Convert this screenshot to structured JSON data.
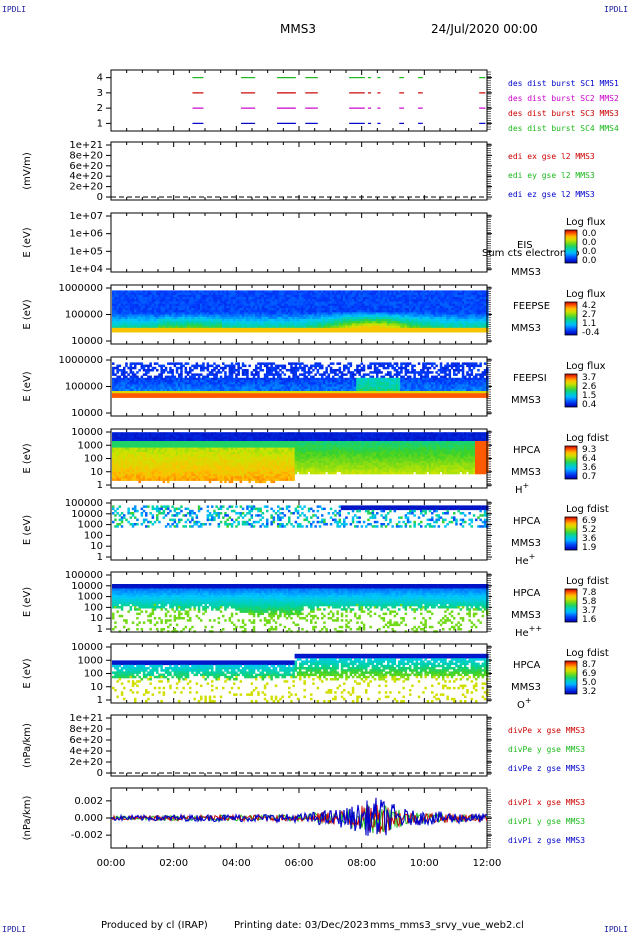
{
  "header": {
    "corner_left": "IPDLI",
    "corner_right": "IPDLI",
    "spacecraft": "MMS3",
    "date": "24/Jul/2020 00:00"
  },
  "footer": {
    "produced_by": "Produced by cl (IRAP)",
    "printing_date": "Printing date: 03/Dec/2023",
    "script": "mms_mms3_srvy_vue_web2.cl",
    "corner_left": "IPDLI",
    "corner_right": "IPDLI"
  },
  "colors": {
    "green": "#1bb81b",
    "red": "#cc0000",
    "magenta": "#cc00cc",
    "blue": "#0000cc",
    "black": "#000000"
  },
  "chart_data": [
    {
      "id": "burst",
      "type": "scatter",
      "ylabel": "",
      "ylim": [
        0.5,
        4.5
      ],
      "yticks": [
        "1",
        "2",
        "3",
        "4"
      ],
      "legend": [
        {
          "label": "des dist burst SC1 MMS1",
          "color": "#0000cc"
        },
        {
          "label": "des dist burst SC2 MMS2",
          "color": "#cc00cc"
        },
        {
          "label": "des dist burst SC3 MMS3",
          "color": "#cc0000"
        },
        {
          "label": "des dist burst SC4 MMS4",
          "color": "#1bb81b"
        }
      ],
      "segments_hours": [
        [
          2.6,
          2.95
        ],
        [
          4.15,
          4.6
        ],
        [
          5.3,
          5.9
        ],
        [
          6.2,
          6.6
        ],
        [
          7.6,
          8.1
        ],
        [
          8.2,
          8.3
        ],
        [
          8.5,
          8.6
        ],
        [
          9.2,
          9.35
        ],
        [
          9.8,
          9.95
        ],
        [
          11.75,
          11.95
        ]
      ],
      "series": [
        {
          "y": 1
        },
        {
          "y": 2
        },
        {
          "y": 3
        },
        {
          "y": 4
        }
      ]
    },
    {
      "id": "edi",
      "type": "line",
      "ylabel": "(mV/m)",
      "ylim": [
        0,
        1e+21
      ],
      "yticks": [
        "0",
        "2e+20",
        "4e+20",
        "6e+20",
        "8e+20",
        "1e+21"
      ],
      "legend": [
        {
          "label": "edi ex gse l2 MMS3",
          "color": "#cc0000"
        },
        {
          "label": "edi ey gse l2 MMS3",
          "color": "#1bb81b"
        },
        {
          "label": "edi ez gse l2 MMS3",
          "color": "#0000cc"
        }
      ],
      "zero_line": true
    },
    {
      "id": "eis",
      "type": "heatmap",
      "ylabel": "E (eV)",
      "yticks": [
        "1e+04",
        "1e+05",
        "1e+06",
        "1e+07"
      ],
      "label": "EIS",
      "sublabel": "MMS3",
      "overlay": "sum_cts_electron_to",
      "cbar_title": "Log flux",
      "cbar_ticks": [
        "0.0",
        "0.0",
        "0.0",
        "0.0"
      ]
    },
    {
      "id": "feeps_e",
      "type": "heatmap",
      "ylabel": "E (eV)",
      "yticks": [
        "10000",
        "100000",
        "1000000"
      ],
      "label": "FEEPSE",
      "sublabel": "MMS3",
      "cbar_title": "Log flux",
      "cbar_ticks": [
        "4.2",
        "2.7",
        "1.1",
        "-0.4"
      ]
    },
    {
      "id": "feeps_i",
      "type": "heatmap",
      "ylabel": "E (eV)",
      "yticks": [
        "10000",
        "100000",
        "1000000"
      ],
      "label": "FEEPSI",
      "sublabel": "MMS3",
      "cbar_title": "Log flux",
      "cbar_ticks": [
        "3.7",
        "2.6",
        "1.5",
        "0.4"
      ]
    },
    {
      "id": "hpca_h",
      "type": "heatmap",
      "ylabel": "E (eV)",
      "yticks": [
        "1",
        "10",
        "100",
        "1000",
        "10000"
      ],
      "label": "HPCA",
      "sublabel": "MMS3",
      "species": "H",
      "charge": "+",
      "cbar_title": "Log fdist",
      "cbar_ticks": [
        "9.3",
        "6.4",
        "3.6",
        "0.7"
      ]
    },
    {
      "id": "hpca_he1",
      "type": "heatmap",
      "ylabel": "E (eV)",
      "yticks": [
        "1",
        "10",
        "100",
        "1000",
        "10000",
        "100000"
      ],
      "label": "HPCA",
      "sublabel": "MMS3",
      "species": "He",
      "charge": "+",
      "cbar_title": "Log fdist",
      "cbar_ticks": [
        "6.9",
        "5.2",
        "3.6",
        "1.9"
      ]
    },
    {
      "id": "hpca_he2",
      "type": "heatmap",
      "ylabel": "E (eV)",
      "yticks": [
        "1",
        "10",
        "100",
        "1000",
        "10000",
        "100000"
      ],
      "label": "HPCA",
      "sublabel": "MMS3",
      "species": "He",
      "charge": "++",
      "cbar_title": "Log fdist",
      "cbar_ticks": [
        "7.8",
        "5.8",
        "3.7",
        "1.6"
      ]
    },
    {
      "id": "hpca_o",
      "type": "heatmap",
      "ylabel": "E (eV)",
      "yticks": [
        "1",
        "10",
        "100",
        "1000",
        "10000"
      ],
      "label": "HPCA",
      "sublabel": "MMS3",
      "species": "O",
      "charge": "+",
      "cbar_title": "Log fdist",
      "cbar_ticks": [
        "8.7",
        "6.9",
        "5.0",
        "3.2"
      ]
    },
    {
      "id": "divpe",
      "type": "line",
      "ylabel": "(nPa/km)",
      "ylim": [
        0,
        1e+21
      ],
      "yticks": [
        "0",
        "2e+20",
        "4e+20",
        "6e+20",
        "8e+20",
        "1e+21"
      ],
      "legend": [
        {
          "label": "divPe x gse MMS3",
          "color": "#cc0000"
        },
        {
          "label": "divPe y gse MMS3",
          "color": "#1bb81b"
        },
        {
          "label": "divPe z gse MMS3",
          "color": "#0000cc"
        }
      ],
      "zero_line": true
    },
    {
      "id": "divpi",
      "type": "line",
      "ylabel": "(nPa/km)",
      "ylim": [
        -0.0035,
        0.0035
      ],
      "yticks": [
        "-0.002",
        "0.000",
        "0.002"
      ],
      "legend": [
        {
          "label": "divPi x gse MMS3",
          "color": "#cc0000"
        },
        {
          "label": "divPi y gse MMS3",
          "color": "#1bb81b"
        },
        {
          "label": "divPi z gse MMS3",
          "color": "#0000cc"
        }
      ],
      "noise_amplitude": [
        [
          0,
          0.0003
        ],
        [
          6,
          0.0005
        ],
        [
          7.5,
          0.0012
        ],
        [
          8.5,
          0.0025
        ],
        [
          9.5,
          0.0009
        ],
        [
          12,
          0.0005
        ]
      ]
    }
  ],
  "x_axis": {
    "ticks": [
      "00:00",
      "02:00",
      "04:00",
      "06:00",
      "08:00",
      "10:00",
      "12:00"
    ],
    "xlim_hours": [
      0,
      12
    ]
  }
}
